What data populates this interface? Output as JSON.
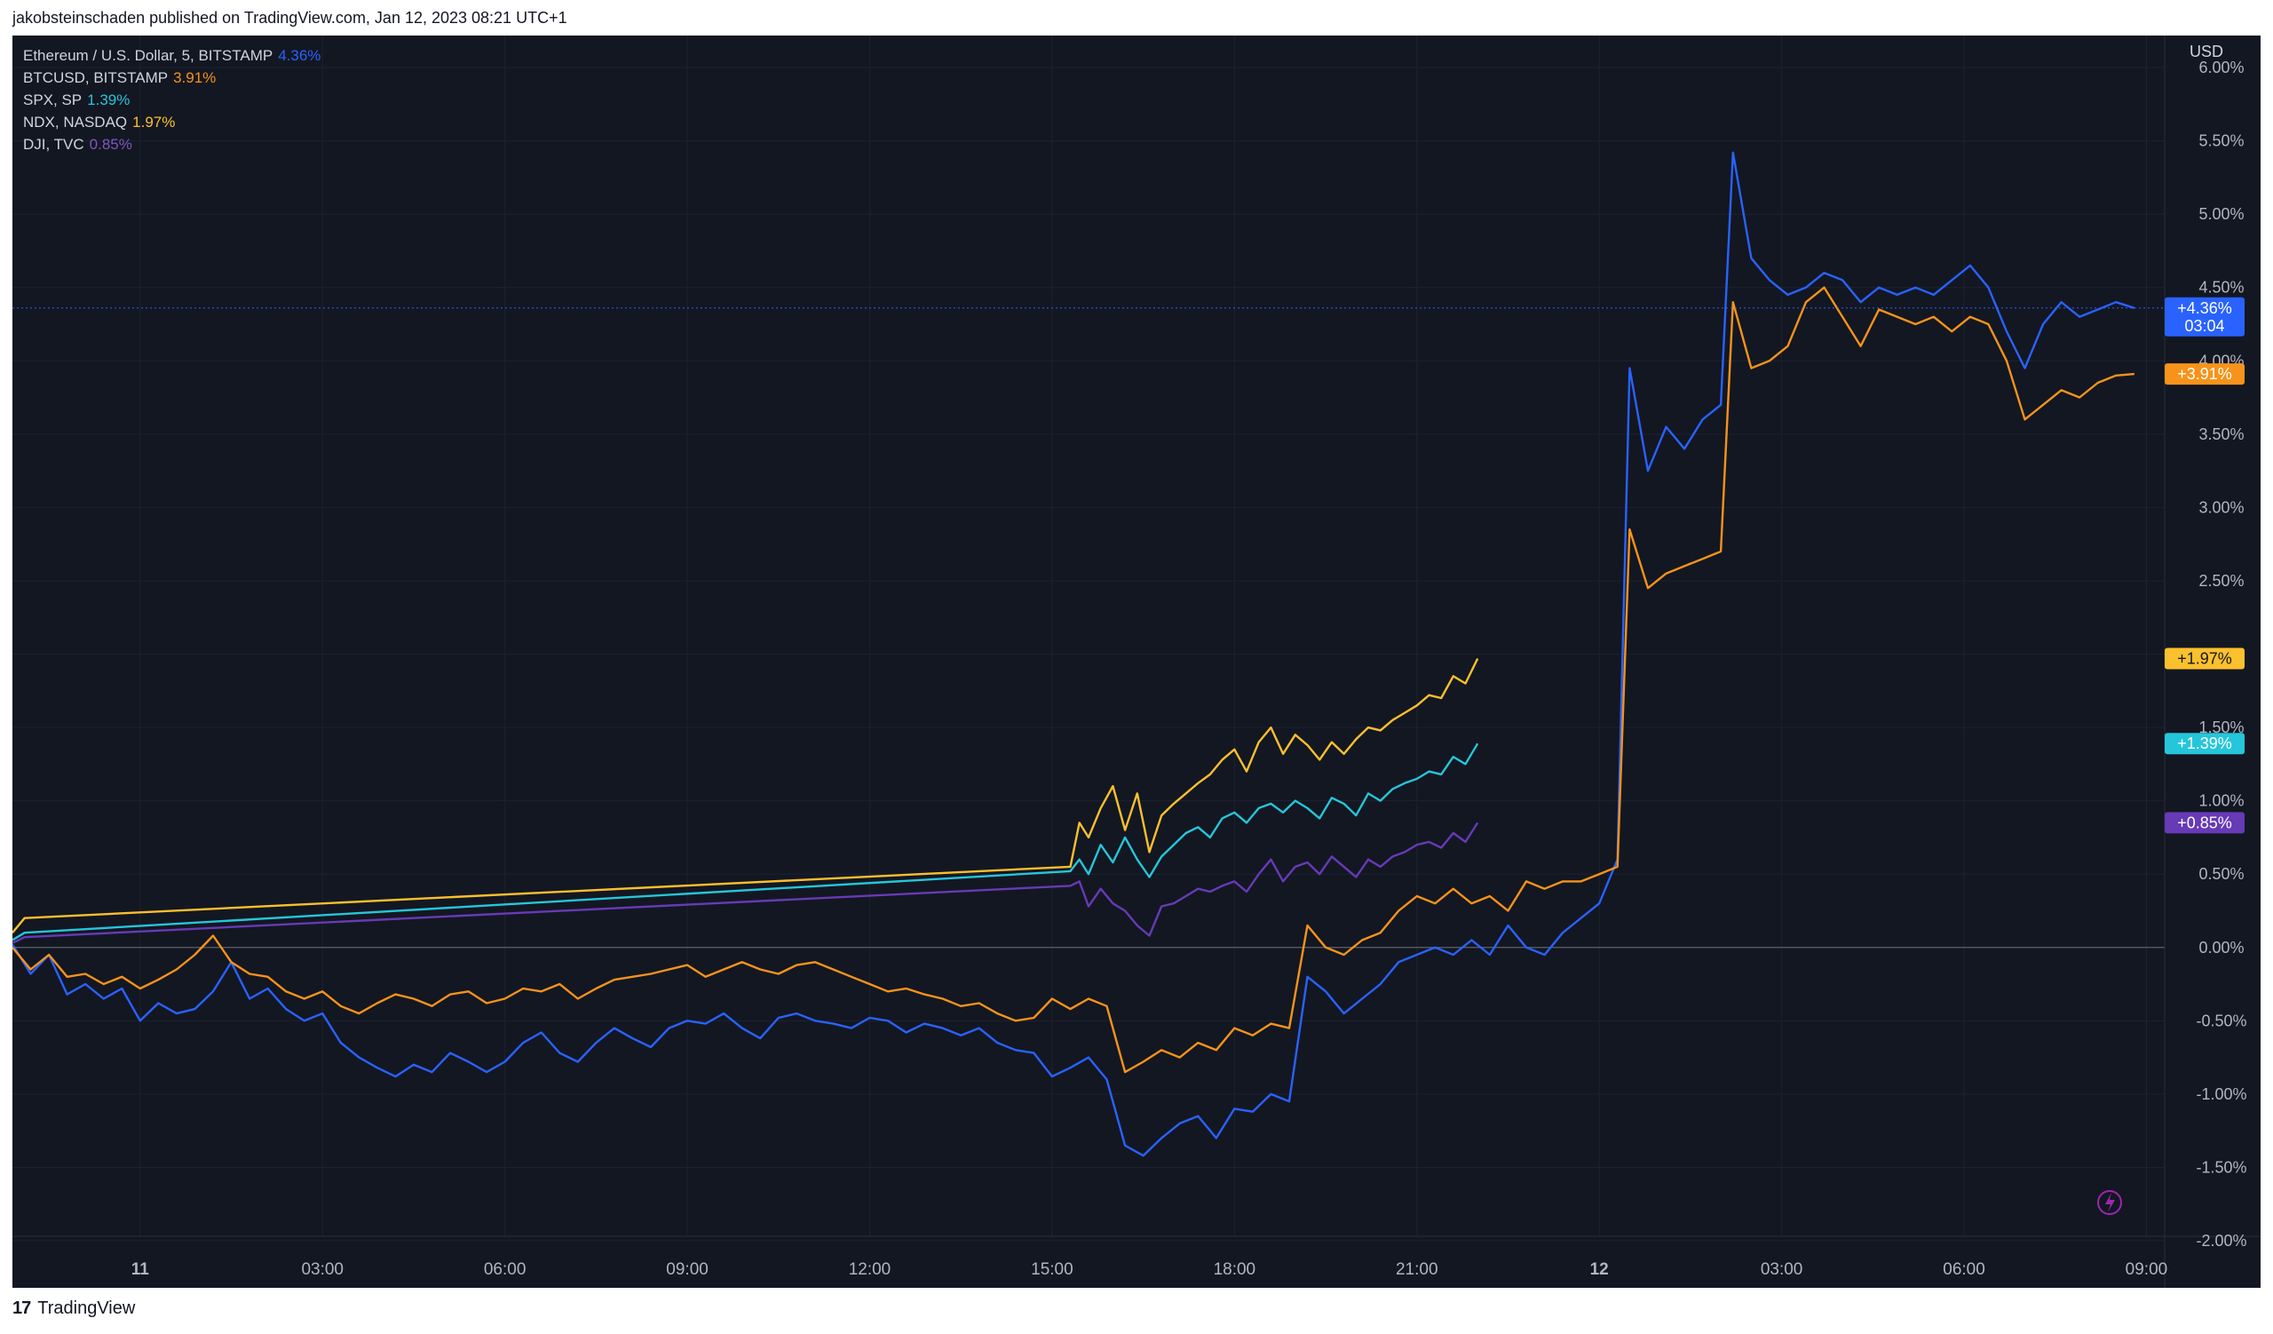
{
  "header": {
    "text": "jakobsteinschaden published on TradingView.com, Jan 12, 2023 08:21 UTC+1"
  },
  "footer": {
    "brand": "TradingView",
    "logo": "17"
  },
  "colors": {
    "background": "#131722",
    "grid": "#1e2230",
    "axis_text": "#b2b5be",
    "eth": "#2962ff",
    "btc": "#f7931a",
    "spx": "#26c6da",
    "ndx": "#fbc02d",
    "dji": "#673ab7"
  },
  "legend": [
    {
      "key": "eth",
      "label": "Ethereum / U.S. Dollar, 5, BITSTAMP",
      "value": "4.36%"
    },
    {
      "key": "btc",
      "label": "BTCUSD, BITSTAMP",
      "value": "3.91%"
    },
    {
      "key": "spx",
      "label": "SPX, SP",
      "value": "1.39%"
    },
    {
      "key": "ndx",
      "label": "NDX, NASDAQ",
      "value": "1.97%"
    },
    {
      "key": "dji",
      "label": "DJI, TVC",
      "value": "0.85%"
    }
  ],
  "chart_data": {
    "type": "line",
    "y_unit_label": "USD",
    "ylim": [
      -2.0,
      6.0
    ],
    "y_ticks": [
      "6.00%",
      "5.50%",
      "5.00%",
      "4.50%",
      "4.00%",
      "3.50%",
      "3.00%",
      "2.50%",
      "2.00%",
      "1.50%",
      "1.00%",
      "0.50%",
      "0.00%",
      "-0.50%",
      "-1.00%",
      "-1.50%",
      "-2.00%"
    ],
    "y_tick_values": [
      6.0,
      5.5,
      5.0,
      4.5,
      4.0,
      3.5,
      3.0,
      2.5,
      2.0,
      1.5,
      1.0,
      0.5,
      0.0,
      -0.5,
      -1.0,
      -1.5,
      -2.0
    ],
    "x_unit": "hours since Jan 11 00:00",
    "xlim": [
      -2.1,
      33.3
    ],
    "x_ticks": [
      {
        "x": 0,
        "label": "11",
        "bold": true
      },
      {
        "x": 3,
        "label": "03:00"
      },
      {
        "x": 6,
        "label": "06:00"
      },
      {
        "x": 9,
        "label": "09:00"
      },
      {
        "x": 12,
        "label": "12:00"
      },
      {
        "x": 15,
        "label": "15:00"
      },
      {
        "x": 18,
        "label": "18:00"
      },
      {
        "x": 21,
        "label": "21:00"
      },
      {
        "x": 24,
        "label": "12",
        "bold": true
      },
      {
        "x": 27,
        "label": "03:00"
      },
      {
        "x": 30,
        "label": "06:00"
      },
      {
        "x": 33,
        "label": "09:00"
      }
    ],
    "grid": true,
    "series": [
      {
        "key": "eth",
        "name": "Ethereum / U.S. Dollar, 5, BITSTAMP",
        "last_label": "+4.36%",
        "countdown": "03:04",
        "x": [
          -2.1,
          -1.8,
          -1.5,
          -1.2,
          -0.9,
          -0.6,
          -0.3,
          0,
          0.3,
          0.6,
          0.9,
          1.2,
          1.5,
          1.8,
          2.1,
          2.4,
          2.7,
          3.0,
          3.3,
          3.6,
          3.9,
          4.2,
          4.5,
          4.8,
          5.1,
          5.4,
          5.7,
          6.0,
          6.3,
          6.6,
          6.9,
          7.2,
          7.5,
          7.8,
          8.1,
          8.4,
          8.7,
          9.0,
          9.3,
          9.6,
          9.9,
          10.2,
          10.5,
          10.8,
          11.1,
          11.4,
          11.7,
          12.0,
          12.3,
          12.6,
          12.9,
          13.2,
          13.5,
          13.8,
          14.1,
          14.4,
          14.7,
          15.0,
          15.3,
          15.6,
          15.9,
          16.2,
          16.5,
          16.8,
          17.1,
          17.4,
          17.7,
          18.0,
          18.3,
          18.6,
          18.9,
          19.2,
          19.5,
          19.8,
          20.1,
          20.4,
          20.7,
          21.0,
          21.3,
          21.6,
          21.9,
          22.2,
          22.5,
          22.8,
          23.1,
          23.4,
          23.7,
          24.0,
          24.3,
          24.5,
          24.8,
          25.1,
          25.4,
          25.7,
          26.0,
          26.2,
          26.5,
          26.8,
          27.1,
          27.4,
          27.7,
          28.0,
          28.3,
          28.6,
          28.9,
          29.2,
          29.5,
          29.8,
          30.1,
          30.4,
          30.7,
          31.0,
          31.3,
          31.6,
          31.9,
          32.2,
          32.5,
          32.8
        ],
        "y": [
          0.02,
          -0.18,
          -0.05,
          -0.32,
          -0.25,
          -0.35,
          -0.28,
          -0.5,
          -0.38,
          -0.45,
          -0.42,
          -0.3,
          -0.1,
          -0.35,
          -0.28,
          -0.42,
          -0.5,
          -0.45,
          -0.65,
          -0.75,
          -0.82,
          -0.88,
          -0.8,
          -0.85,
          -0.72,
          -0.78,
          -0.85,
          -0.78,
          -0.65,
          -0.58,
          -0.72,
          -0.78,
          -0.65,
          -0.55,
          -0.62,
          -0.68,
          -0.55,
          -0.5,
          -0.52,
          -0.45,
          -0.55,
          -0.62,
          -0.48,
          -0.45,
          -0.5,
          -0.52,
          -0.55,
          -0.48,
          -0.5,
          -0.58,
          -0.52,
          -0.55,
          -0.6,
          -0.55,
          -0.65,
          -0.7,
          -0.72,
          -0.88,
          -0.82,
          -0.75,
          -0.9,
          -1.35,
          -1.42,
          -1.3,
          -1.2,
          -1.15,
          -1.3,
          -1.1,
          -1.12,
          -1.0,
          -1.05,
          -0.2,
          -0.3,
          -0.45,
          -0.35,
          -0.25,
          -0.1,
          -0.05,
          0.0,
          -0.05,
          0.05,
          -0.05,
          0.15,
          0.0,
          -0.05,
          0.1,
          0.2,
          0.3,
          0.6,
          3.95,
          3.25,
          3.55,
          3.4,
          3.6,
          3.7,
          5.42,
          4.7,
          4.55,
          4.45,
          4.5,
          4.6,
          4.55,
          4.4,
          4.5,
          4.45,
          4.5,
          4.45,
          4.55,
          4.65,
          4.5,
          4.2,
          3.95,
          4.25,
          4.4,
          4.3,
          4.35,
          4.4,
          4.36
        ]
      },
      {
        "key": "btc",
        "name": "BTCUSD, BITSTAMP",
        "last_label": "+3.91%",
        "x": [
          -2.1,
          -1.8,
          -1.5,
          -1.2,
          -0.9,
          -0.6,
          -0.3,
          0,
          0.3,
          0.6,
          0.9,
          1.2,
          1.5,
          1.8,
          2.1,
          2.4,
          2.7,
          3.0,
          3.3,
          3.6,
          3.9,
          4.2,
          4.5,
          4.8,
          5.1,
          5.4,
          5.7,
          6.0,
          6.3,
          6.6,
          6.9,
          7.2,
          7.5,
          7.8,
          8.1,
          8.4,
          8.7,
          9.0,
          9.3,
          9.6,
          9.9,
          10.2,
          10.5,
          10.8,
          11.1,
          11.4,
          11.7,
          12.0,
          12.3,
          12.6,
          12.9,
          13.2,
          13.5,
          13.8,
          14.1,
          14.4,
          14.7,
          15.0,
          15.3,
          15.6,
          15.9,
          16.2,
          16.5,
          16.8,
          17.1,
          17.4,
          17.7,
          18.0,
          18.3,
          18.6,
          18.9,
          19.2,
          19.5,
          19.8,
          20.1,
          20.4,
          20.7,
          21.0,
          21.3,
          21.6,
          21.9,
          22.2,
          22.5,
          22.8,
          23.1,
          23.4,
          23.7,
          24.0,
          24.3,
          24.5,
          24.8,
          25.1,
          25.4,
          25.7,
          26.0,
          26.2,
          26.5,
          26.8,
          27.1,
          27.4,
          27.7,
          28.0,
          28.3,
          28.6,
          28.9,
          29.2,
          29.5,
          29.8,
          30.1,
          30.4,
          30.7,
          31.0,
          31.3,
          31.6,
          31.9,
          32.2,
          32.5,
          32.8
        ],
        "y": [
          0.0,
          -0.15,
          -0.05,
          -0.2,
          -0.18,
          -0.25,
          -0.2,
          -0.28,
          -0.22,
          -0.15,
          -0.05,
          0.08,
          -0.1,
          -0.18,
          -0.2,
          -0.3,
          -0.35,
          -0.3,
          -0.4,
          -0.45,
          -0.38,
          -0.32,
          -0.35,
          -0.4,
          -0.32,
          -0.3,
          -0.38,
          -0.35,
          -0.28,
          -0.3,
          -0.25,
          -0.35,
          -0.28,
          -0.22,
          -0.2,
          -0.18,
          -0.15,
          -0.12,
          -0.2,
          -0.15,
          -0.1,
          -0.15,
          -0.18,
          -0.12,
          -0.1,
          -0.15,
          -0.2,
          -0.25,
          -0.3,
          -0.28,
          -0.32,
          -0.35,
          -0.4,
          -0.38,
          -0.45,
          -0.5,
          -0.48,
          -0.35,
          -0.42,
          -0.35,
          -0.4,
          -0.85,
          -0.78,
          -0.7,
          -0.75,
          -0.65,
          -0.7,
          -0.55,
          -0.6,
          -0.52,
          -0.55,
          0.15,
          0.0,
          -0.05,
          0.05,
          0.1,
          0.25,
          0.35,
          0.3,
          0.4,
          0.3,
          0.35,
          0.25,
          0.45,
          0.4,
          0.45,
          0.45,
          0.5,
          0.55,
          2.85,
          2.45,
          2.55,
          2.6,
          2.65,
          2.7,
          4.4,
          3.95,
          4.0,
          4.1,
          4.4,
          4.5,
          4.3,
          4.1,
          4.35,
          4.3,
          4.25,
          4.3,
          4.2,
          4.3,
          4.25,
          4.0,
          3.6,
          3.7,
          3.8,
          3.75,
          3.85,
          3.9,
          3.91
        ]
      },
      {
        "key": "spx",
        "name": "SPX, SP",
        "last_label": "+1.39%",
        "x": [
          -2.1,
          -1.9,
          15.3,
          15.45,
          15.6,
          15.8,
          16.0,
          16.2,
          16.4,
          16.6,
          16.8,
          17.0,
          17.2,
          17.4,
          17.6,
          17.8,
          18.0,
          18.2,
          18.4,
          18.6,
          18.8,
          19.0,
          19.2,
          19.4,
          19.6,
          19.8,
          20.0,
          20.2,
          20.4,
          20.6,
          20.8,
          21.0,
          21.2,
          21.4,
          21.6,
          21.8,
          22.0
        ],
        "y": [
          0.05,
          0.1,
          0.52,
          0.6,
          0.5,
          0.7,
          0.58,
          0.75,
          0.6,
          0.48,
          0.62,
          0.7,
          0.78,
          0.82,
          0.75,
          0.88,
          0.92,
          0.85,
          0.95,
          0.98,
          0.92,
          1.0,
          0.95,
          0.88,
          1.02,
          0.98,
          0.9,
          1.05,
          1.0,
          1.08,
          1.12,
          1.15,
          1.2,
          1.18,
          1.3,
          1.25,
          1.39
        ]
      },
      {
        "key": "ndx",
        "name": "NDX, NASDAQ",
        "last_label": "+1.97%",
        "x": [
          -2.1,
          -1.9,
          15.3,
          15.45,
          15.6,
          15.8,
          16.0,
          16.2,
          16.4,
          16.6,
          16.8,
          17.0,
          17.2,
          17.4,
          17.6,
          17.8,
          18.0,
          18.2,
          18.4,
          18.6,
          18.8,
          19.0,
          19.2,
          19.4,
          19.6,
          19.8,
          20.0,
          20.2,
          20.4,
          20.6,
          20.8,
          21.0,
          21.2,
          21.4,
          21.6,
          21.8,
          22.0
        ],
        "y": [
          0.1,
          0.2,
          0.55,
          0.85,
          0.75,
          0.95,
          1.1,
          0.8,
          1.05,
          0.65,
          0.9,
          0.98,
          1.05,
          1.12,
          1.18,
          1.28,
          1.35,
          1.2,
          1.4,
          1.5,
          1.32,
          1.45,
          1.38,
          1.28,
          1.4,
          1.32,
          1.42,
          1.5,
          1.48,
          1.55,
          1.6,
          1.65,
          1.72,
          1.7,
          1.85,
          1.8,
          1.97
        ]
      },
      {
        "key": "dji",
        "name": "DJI, TVC",
        "last_label": "+0.85%",
        "x": [
          -2.1,
          -1.9,
          15.3,
          15.45,
          15.6,
          15.8,
          16.0,
          16.2,
          16.4,
          16.6,
          16.8,
          17.0,
          17.2,
          17.4,
          17.6,
          17.8,
          18.0,
          18.2,
          18.4,
          18.6,
          18.8,
          19.0,
          19.2,
          19.4,
          19.6,
          19.8,
          20.0,
          20.2,
          20.4,
          20.6,
          20.8,
          21.0,
          21.2,
          21.4,
          21.6,
          21.8,
          22.0
        ],
        "y": [
          0.03,
          0.07,
          0.42,
          0.45,
          0.28,
          0.4,
          0.3,
          0.25,
          0.15,
          0.08,
          0.28,
          0.3,
          0.35,
          0.4,
          0.38,
          0.42,
          0.45,
          0.38,
          0.5,
          0.6,
          0.45,
          0.55,
          0.58,
          0.5,
          0.62,
          0.55,
          0.48,
          0.6,
          0.55,
          0.62,
          0.65,
          0.7,
          0.72,
          0.68,
          0.78,
          0.72,
          0.85
        ]
      }
    ]
  }
}
